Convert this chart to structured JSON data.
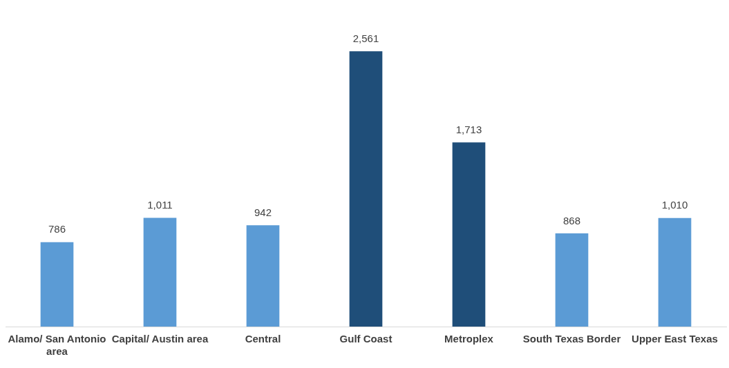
{
  "chart_data": {
    "type": "bar",
    "categories": [
      "Alamo/ San Antonio area",
      "Capital/ Austin area",
      "Central",
      "Gulf Coast",
      "Metroplex",
      "South Texas Border",
      "Upper East Texas"
    ],
    "values": [
      786,
      1011,
      942,
      2561,
      1713,
      868,
      1010
    ],
    "colors": [
      "#5b9bd5",
      "#5b9bd5",
      "#5b9bd5",
      "#1f4e79",
      "#1f4e79",
      "#5b9bd5",
      "#5b9bd5"
    ],
    "value_labels": [
      "786",
      "1,011",
      "942",
      "2,561",
      "1,713",
      "868",
      "1,010"
    ],
    "grid": false,
    "legend": false
  }
}
